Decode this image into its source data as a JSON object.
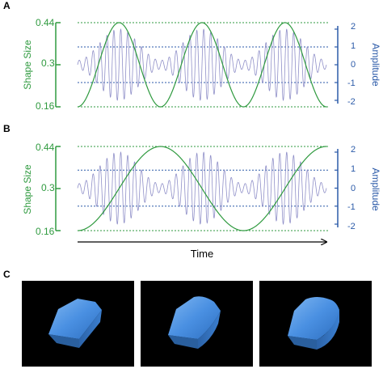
{
  "panels_ab": [
    {
      "letter": "A",
      "left_axis_label": "Shape Size",
      "right_axis_label": "Amplitude",
      "left_ticks": [
        "0.44",
        "0.3",
        "0.16"
      ],
      "right_ticks": [
        "2",
        "1",
        "0",
        "-1",
        "-2"
      ],
      "chart": {
        "type": "line",
        "series": [
          {
            "values_desc": "sinusoid",
            "cycles": 3,
            "ylim": [
              0.16,
              0.44
            ]
          },
          {
            "values_desc": "amplitude-modulated oscillation",
            "cycles": 3,
            "carrier_cycles": 36,
            "ylim": [
              -2,
              2
            ]
          }
        ]
      }
    },
    {
      "letter": "B",
      "left_axis_label": "Shape Size",
      "right_axis_label": "Amplitude",
      "left_ticks": [
        "0.44",
        "0.3",
        "0.16"
      ],
      "right_ticks": [
        "2",
        "1",
        "0",
        "-1",
        "-2"
      ],
      "chart": {
        "type": "line",
        "series": [
          {
            "values_desc": "sinusoid",
            "cycles": 1.5,
            "ylim": [
              0.16,
              0.44
            ]
          },
          {
            "values_desc": "amplitude-modulated oscillation",
            "cycles": 3,
            "carrier_cycles": 36,
            "ylim": [
              -2,
              2
            ]
          }
        ]
      }
    }
  ],
  "x_axis_label": "Time",
  "panel_c_letter": "C",
  "colors": {
    "shape_size": "#2f9a3f",
    "amplitude": "#2b5aa8",
    "oscillation": "#8f8fc8",
    "shape_fill": "#4a90e2",
    "render_bg": "#000000"
  },
  "chart_data": [
    {
      "type": "line",
      "panel": "A",
      "ylabel_left": "Shape Size",
      "ylabel_right": "Amplitude",
      "ylim_left": [
        0.16,
        0.44
      ],
      "ylim_right": [
        -2,
        2
      ],
      "yticks_left": [
        0.44,
        0.3,
        0.16
      ],
      "yticks_right": [
        2,
        1,
        0,
        -1,
        -2
      ],
      "grid": "dotted reference lines at ticks",
      "series": [
        {
          "shape": "sine",
          "cycles": 3,
          "min": 0.16,
          "max": 0.44
        },
        {
          "shape": "amplitude-modulated oscillation",
          "envelope_cycles": 3,
          "min": -2,
          "max": 2
        }
      ]
    },
    {
      "type": "line",
      "panel": "B",
      "xlabel": "Time",
      "ylabel_left": "Shape Size",
      "ylabel_right": "Amplitude",
      "ylim_left": [
        0.16,
        0.44
      ],
      "ylim_right": [
        -2,
        2
      ],
      "yticks_left": [
        0.44,
        0.3,
        0.16
      ],
      "yticks_right": [
        2,
        1,
        0,
        -1,
        -2
      ],
      "grid": "dotted reference lines at ticks",
      "series": [
        {
          "shape": "sine",
          "cycles": 1.5,
          "min": 0.16,
          "max": 0.44
        },
        {
          "shape": "amplitude-modulated oscillation",
          "envelope_cycles": 3,
          "min": -2,
          "max": 2
        }
      ]
    }
  ]
}
